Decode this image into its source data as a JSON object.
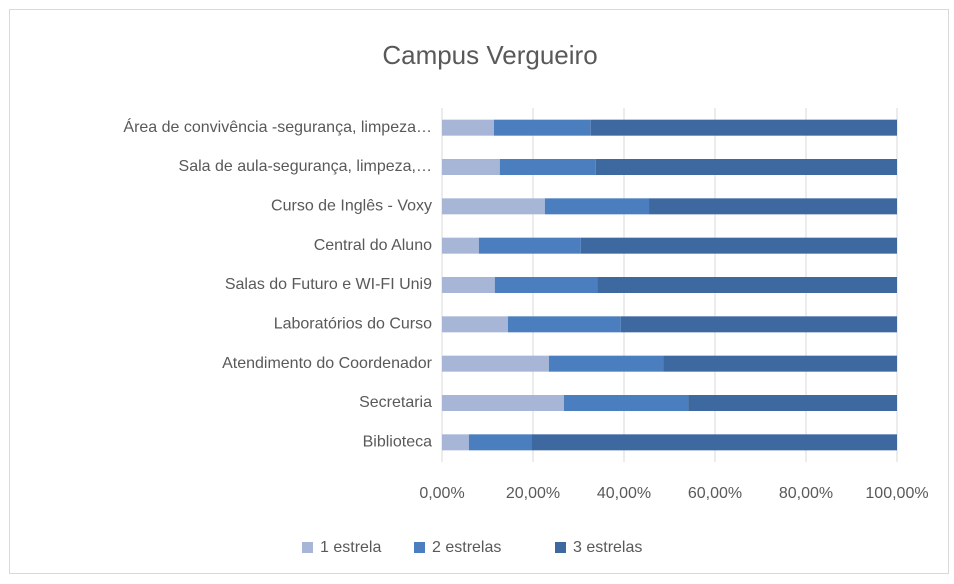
{
  "chart_data": {
    "type": "stacked_barh",
    "title": "Campus Vergueiro",
    "categories": [
      "Área de convivência -segurança, limpeza…",
      "Sala de aula-segurança, limpeza,…",
      "Curso de Inglês - Voxy",
      "Central do Aluno",
      "Salas do Futuro e WI-FI Uni9",
      "Laboratórios do Curso",
      "Atendimento do Coordenador",
      "Secretaria",
      "Biblioteca"
    ],
    "series": [
      {
        "name": "1 estrela",
        "color": "#a7b5d7",
        "values": [
          11.4,
          12.7,
          22.6,
          8.1,
          11.6,
          14.5,
          23.5,
          26.8,
          5.9
        ]
      },
      {
        "name": "2 estrelas",
        "color": "#4a7ebf",
        "values": [
          21.3,
          21.1,
          22.9,
          22.4,
          22.5,
          24.8,
          25.1,
          27.3,
          13.7
        ]
      },
      {
        "name": "3 estrelas",
        "color": "#3d68a0",
        "values": [
          67.3,
          66.2,
          54.5,
          69.5,
          65.9,
          60.7,
          51.4,
          45.9,
          80.4
        ]
      }
    ],
    "xlim": [
      0,
      100
    ],
    "xticks": [
      {
        "value": 0,
        "label": "0,00%"
      },
      {
        "value": 20,
        "label": "20,00%"
      },
      {
        "value": 40,
        "label": "40,00%"
      },
      {
        "value": 60,
        "label": "60,00%"
      },
      {
        "value": 80,
        "label": "80,00%"
      },
      {
        "value": 100,
        "label": "100,00%"
      }
    ],
    "grid": true,
    "legend": "bottom"
  }
}
